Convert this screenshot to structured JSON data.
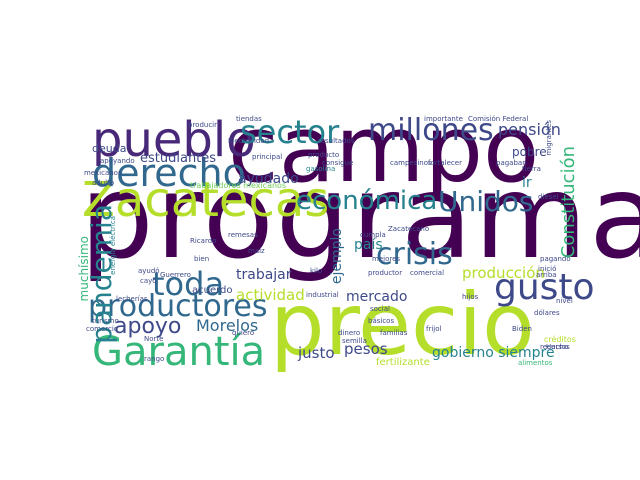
{
  "colors": {
    "dark_purple": "#440154",
    "purple": "#482878",
    "indigo": "#3e4989",
    "blue": "#31688e",
    "teal": "#26828e",
    "green_teal": "#1f9e89",
    "green": "#35b779",
    "light_green": "#6ece58",
    "yellow_green": "#b5de2b",
    "yellow": "#fde725"
  },
  "words": [
    {
      "text": "programa",
      "color": "#440154"
    },
    {
      "text": "campo",
      "color": "#440154"
    },
    {
      "text": "precio",
      "color": "#b5de2b"
    },
    {
      "text": "Zacatecas",
      "color": "#b5de2b"
    },
    {
      "text": "pueblo",
      "color": "#482878"
    },
    {
      "text": "derecho",
      "color": "#31688e"
    },
    {
      "text": "Garantía",
      "color": "#35b779"
    },
    {
      "text": "productores",
      "color": "#31688e"
    },
    {
      "text": "gusto",
      "color": "#3e4989"
    },
    {
      "text": "toda",
      "color": "#31688e"
    },
    {
      "text": "crisis",
      "color": "#31688e"
    },
    {
      "text": "sector",
      "color": "#26828e"
    },
    {
      "text": "millones",
      "color": "#3e4989"
    },
    {
      "text": "Unidos",
      "color": "#31688e"
    },
    {
      "text": "económica",
      "color": "#26828e"
    },
    {
      "text": "pandemia",
      "color": "#26828e"
    },
    {
      "text": "apoyo",
      "color": "#3e4989"
    },
    {
      "text": "Morelos",
      "color": "#31688e"
    },
    {
      "text": "pensión",
      "color": "#3e4989"
    },
    {
      "text": "Constitución",
      "color": "#35b779"
    },
    {
      "text": "estudiantes",
      "color": "#3e4989"
    },
    {
      "text": "ayudado",
      "color": "#3e4989"
    },
    {
      "text": "actividad",
      "color": "#b5de2b"
    },
    {
      "text": "producción",
      "color": "#b5de2b"
    },
    {
      "text": "mercado",
      "color": "#3e4989"
    },
    {
      "text": "gobierno siempre",
      "color": "#26828e"
    },
    {
      "text": "justo",
      "color": "#3e4989"
    },
    {
      "text": "pesos",
      "color": "#3e4989"
    },
    {
      "text": "país",
      "color": "#26828e"
    },
    {
      "text": "trabajar",
      "color": "#3e4989"
    },
    {
      "text": "ejemplo",
      "color": "#31688e"
    },
    {
      "text": "deuda",
      "color": "#3e4989"
    },
    {
      "text": "pobre",
      "color": "#3e4989"
    },
    {
      "text": "ir",
      "color": "#26828e"
    },
    {
      "text": "muchísimo",
      "color": "#35b779"
    },
    {
      "text": "acuerdo",
      "color": "#3e4989"
    },
    {
      "text": "trabajadores mexicanos",
      "color": "#6ece58"
    },
    {
      "text": "Comisión Federal",
      "color": "#3e4989"
    },
    {
      "text": "fertilizante",
      "color": "#b5de2b"
    },
    {
      "text": "tiendas",
      "color": "#3e4989"
    },
    {
      "text": "Electricidad",
      "color": "#3e4989"
    },
    {
      "text": "producir",
      "color": "#3e4989"
    },
    {
      "text": "resultados",
      "color": "#3e4989"
    },
    {
      "text": "gasolina",
      "color": "#26828e"
    },
    {
      "text": "Ricardo",
      "color": "#3e4989"
    },
    {
      "text": "energía eléctrica",
      "color": "#26828e"
    },
    {
      "text": "Guerrero",
      "color": "#3e4989"
    },
    {
      "text": "lecherías",
      "color": "#3e4989"
    },
    {
      "text": "dólares",
      "color": "#3e4989"
    },
    {
      "text": "créditos",
      "color": "#b5de2b"
    },
    {
      "text": "dinero",
      "color": "#3e4989"
    },
    {
      "text": "frijol",
      "color": "#3e4989"
    },
    {
      "text": "Biden",
      "color": "#3e4989"
    },
    {
      "text": "diésel",
      "color": "#3e4989"
    },
    {
      "text": "campesinos",
      "color": "#3e4989"
    },
    {
      "text": "fortalecer",
      "color": "#3e4989"
    },
    {
      "text": "consigue",
      "color": "#3e4989"
    },
    {
      "text": "básicos",
      "color": "#3e4989"
    },
    {
      "text": "familias",
      "color": "#3e4989"
    },
    {
      "text": "mejores",
      "color": "#3e4989"
    },
    {
      "text": "migrantes",
      "color": "#3e4989"
    },
    {
      "text": "importante",
      "color": "#3e4989"
    },
    {
      "text": "producto",
      "color": "#3e4989"
    },
    {
      "text": "industrial",
      "color": "#3e4989"
    },
    {
      "text": "social",
      "color": "#3e4989"
    },
    {
      "text": "nivel",
      "color": "#3e4989"
    },
    {
      "text": "hijos",
      "color": "#3e4989"
    },
    {
      "text": "apoyando",
      "color": "#3e4989"
    },
    {
      "text": "mexicanos",
      "color": "#3e4989"
    },
    {
      "text": "adulto",
      "color": "#3e4989"
    },
    {
      "text": "maíz",
      "color": "#3e4989"
    },
    {
      "text": "bien",
      "color": "#3e4989"
    },
    {
      "text": "quiero",
      "color": "#3e4989"
    },
    {
      "text": "cayó",
      "color": "#3e4989"
    },
    {
      "text": "ayudó",
      "color": "#3e4989"
    },
    {
      "text": "kilo",
      "color": "#3e4989"
    },
    {
      "text": "productor",
      "color": "#3e4989"
    },
    {
      "text": "pagando",
      "color": "#3e4989"
    },
    {
      "text": "pagaban",
      "color": "#3e4989"
    },
    {
      "text": "cumpla",
      "color": "#3e4989"
    },
    {
      "text": "comercial",
      "color": "#3e4989"
    },
    {
      "text": "remesas",
      "color": "#3e4989"
    },
    {
      "text": "semilla",
      "color": "#3e4989"
    },
    {
      "text": "arriba",
      "color": "#3e4989"
    },
    {
      "text": "inició",
      "color": "#3e4989"
    },
    {
      "text": "comercio",
      "color": "#3e4989"
    },
    {
      "text": "turismo",
      "color": "#3e4989"
    },
    {
      "text": "Norte",
      "color": "#3e4989"
    },
    {
      "text": "rango",
      "color": "#3e4989"
    },
    {
      "text": "tierra",
      "color": "#3e4989"
    },
    {
      "text": "Hecho",
      "color": "#3e4989"
    },
    {
      "text": "principal",
      "color": "#3e4989"
    },
    {
      "text": "Zacatecano",
      "color": "#3e4989"
    },
    {
      "text": "recursos",
      "color": "#3e4989"
    },
    {
      "text": "alimentos",
      "color": "#3e4989"
    }
  ]
}
